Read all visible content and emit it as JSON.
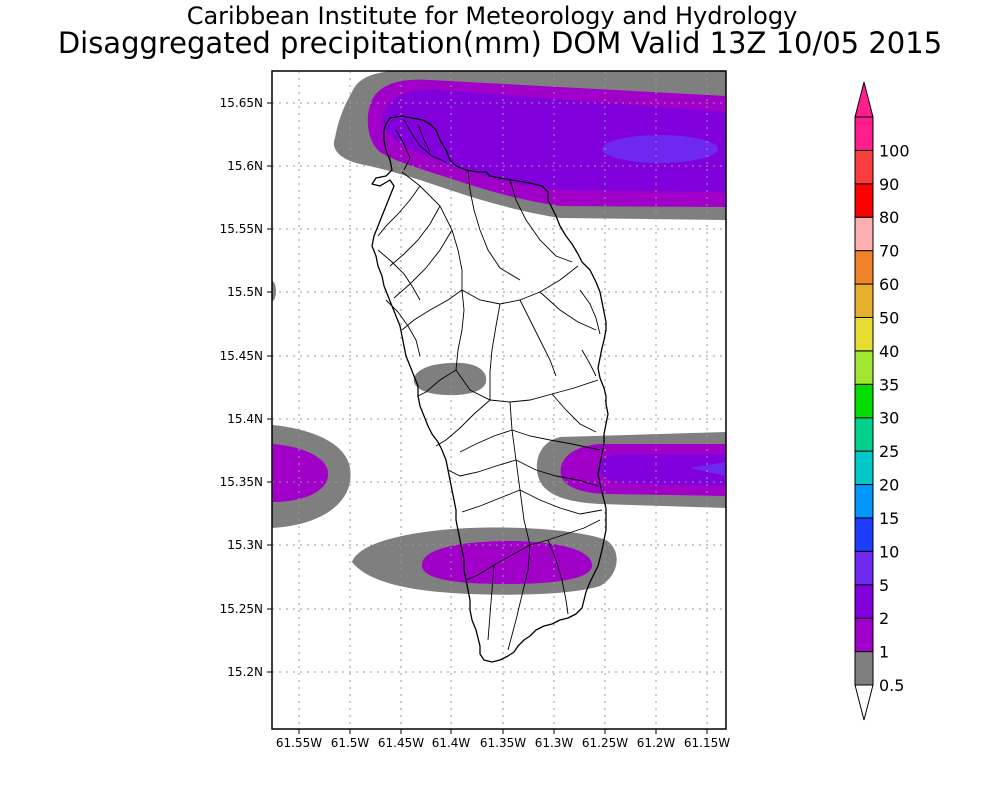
{
  "title": "Caribbean Institute for Meteorology and Hydrology",
  "subtitle": "Disaggregated precipitation(mm) DOM Valid 13Z 10/05 2015",
  "map": {
    "x_ticks": [
      "61.55W",
      "61.5W",
      "61.45W",
      "61.4W",
      "61.35W",
      "61.3W",
      "61.25W",
      "61.2W",
      "61.15W"
    ],
    "y_ticks": [
      "15.65N",
      "15.6N",
      "15.55N",
      "15.5N",
      "15.45N",
      "15.4N",
      "15.35N",
      "15.3N",
      "15.25N",
      "15.2N"
    ],
    "lon_range": [
      -61.568,
      -61.146
    ],
    "lat_range": [
      15.155,
      15.676
    ],
    "grid": true
  },
  "colorbar": {
    "labels": [
      "0.5",
      "1",
      "2",
      "5",
      "10",
      "15",
      "20",
      "25",
      "30",
      "35",
      "40",
      "50",
      "60",
      "70",
      "80",
      "90",
      "100"
    ],
    "colors": [
      "#7f7f7f",
      "#a000c8",
      "#8200dc",
      "#6e28f0",
      "#1e3cff",
      "#0096ff",
      "#00c8c8",
      "#00d28c",
      "#00dc00",
      "#a0e632",
      "#e6dc32",
      "#e6af2d",
      "#f08228",
      "#fbafaf",
      "#ff0000",
      "#fa3c3c",
      "#ff1e8c"
    ]
  }
}
